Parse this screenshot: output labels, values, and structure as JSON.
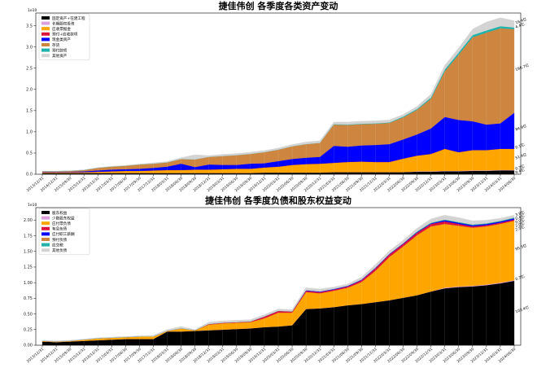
{
  "chart_data": [
    {
      "type": "area",
      "stacked": true,
      "title": "捷佳伟创 各季度各类资产变动",
      "xlabel": "",
      "ylabel": "",
      "y_exponent_label": "1e10",
      "ylim": [
        0,
        3.8
      ],
      "yticks": [
        "0.0",
        "0.5",
        "1.0",
        "1.5",
        "2.0",
        "2.5",
        "3.0",
        "3.5"
      ],
      "ytick_values": [
        0,
        0.5,
        1.0,
        1.5,
        2.0,
        2.5,
        3.0,
        3.5
      ],
      "legend_position": "top-left",
      "grid": false,
      "categories": [
        "2013/12/31",
        "2014/12/31",
        "2015/09/30",
        "2015/12/31",
        "2016/12/31",
        "2017/03/31",
        "2017/06/30",
        "2017/09/30",
        "2017/12/31",
        "2018/03/31",
        "2018/06/30",
        "2018/09/30",
        "2018/12/31",
        "2019/03/31",
        "2019/06/30",
        "2019/09/30",
        "2019/12/31",
        "2020/03/31",
        "2020/06/30",
        "2020/09/30",
        "2020/12/31",
        "2021/03/31",
        "2021/06/30",
        "2021/09/30",
        "2021/12/31",
        "2022/03/31",
        "2022/06/30",
        "2022/09/30",
        "2022/12/31",
        "2023/03/31",
        "2023/06/30",
        "2023/09/30",
        "2023/12/31",
        "2024/03/31",
        "2024/06/30"
      ],
      "tick_labels": [
        "2013/12/31",
        "2014/12/31",
        "2015/09/30",
        "2015/12/31",
        "2016/12/31",
        "2017/03/31",
        "2017/06/30",
        "2017/09/30",
        "2017/12/31",
        "2018/03/31",
        "2018/06/30",
        "2018/09/30",
        "2018/12/31",
        "2019/03/31",
        "2019/06/30",
        "2019/09/30",
        "2019/12/31",
        "2020/03/31",
        "2020/06/30",
        "2020/09/30",
        "2020/12/31",
        "2021/03/31",
        "2021/06/30",
        "2021/09/30",
        "2021/12/31",
        "2022/03/31",
        "2022/06/30",
        "2022/09/30",
        "2022/12/31",
        "2023/03/31",
        "2023/06/30",
        "2023/09/30",
        "2023/12/31",
        "2024/03/31",
        "2024/06/30"
      ],
      "series": [
        {
          "name": "固定资产+在建工程",
          "color": "#000000",
          "values": [
            0.03,
            0.03,
            0.03,
            0.03,
            0.03,
            0.03,
            0.03,
            0.03,
            0.03,
            0.03,
            0.03,
            0.03,
            0.03,
            0.03,
            0.03,
            0.03,
            0.04,
            0.04,
            0.04,
            0.04,
            0.04,
            0.05,
            0.05,
            0.05,
            0.05,
            0.05,
            0.05,
            0.06,
            0.06,
            0.07,
            0.07,
            0.08,
            0.08,
            0.09,
            0.09
          ]
        },
        {
          "name": "长期股权投资",
          "color": "#dda0dd",
          "values": [
            0.0,
            0.0,
            0.0,
            0.0,
            0.0,
            0.0,
            0.0,
            0.0,
            0.0,
            0.0,
            0.0,
            0.0,
            0.0,
            0.0,
            0.0,
            0.0,
            0.0,
            0.0,
            0.0,
            0.0,
            0.0,
            0.0,
            0.0,
            0.0,
            0.0,
            0.0,
            0.0,
            0.01,
            0.01,
            0.01,
            0.01,
            0.01,
            0.01,
            0.01,
            0.01
          ]
        },
        {
          "name": "应收票据金",
          "color": "#ffa500",
          "values": [
            0.02,
            0.02,
            0.02,
            0.02,
            0.03,
            0.04,
            0.05,
            0.05,
            0.06,
            0.07,
            0.07,
            0.08,
            0.08,
            0.09,
            0.1,
            0.1,
            0.12,
            0.14,
            0.18,
            0.2,
            0.21,
            0.22,
            0.24,
            0.25,
            0.24,
            0.24,
            0.32,
            0.37,
            0.41,
            0.52,
            0.44,
            0.48,
            0.48,
            0.5,
            0.5
          ]
        },
        {
          "name": "预付+应收款项",
          "color": "#dc143c",
          "values": [
            0.0,
            0.0,
            0.0,
            0.0,
            0.0,
            0.0,
            0.0,
            0.0,
            0.0,
            0.0,
            0.0,
            0.0,
            0.0,
            0.0,
            0.0,
            0.0,
            0.0,
            0.0,
            0.0,
            0.0,
            0.0,
            0.0,
            0.0,
            0.0,
            0.0,
            0.0,
            0.0,
            0.0,
            0.0,
            0.0,
            0.0,
            0.0,
            0.0,
            0.0,
            0.0
          ]
        },
        {
          "name": "现金类资产",
          "color": "#0000ff",
          "values": [
            0.01,
            0.01,
            0.01,
            0.02,
            0.03,
            0.04,
            0.04,
            0.05,
            0.06,
            0.08,
            0.15,
            0.06,
            0.12,
            0.1,
            0.09,
            0.12,
            0.1,
            0.13,
            0.14,
            0.15,
            0.16,
            0.4,
            0.36,
            0.38,
            0.4,
            0.42,
            0.45,
            0.5,
            0.6,
            0.75,
            0.76,
            0.68,
            0.6,
            0.6,
            0.85
          ]
        },
        {
          "name": "存货",
          "color": "#cd853f",
          "values": [
            0.01,
            0.01,
            0.02,
            0.03,
            0.06,
            0.07,
            0.08,
            0.1,
            0.1,
            0.1,
            0.11,
            0.18,
            0.18,
            0.21,
            0.23,
            0.23,
            0.26,
            0.27,
            0.3,
            0.32,
            0.33,
            0.5,
            0.51,
            0.5,
            0.5,
            0.5,
            0.52,
            0.58,
            0.7,
            1.08,
            1.54,
            1.98,
            2.17,
            2.24,
            1.97
          ]
        },
        {
          "name": "预付款项",
          "color": "#20b2aa",
          "values": [
            0.0,
            0.0,
            0.0,
            0.0,
            0.0,
            0.0,
            0.0,
            0.0,
            0.0,
            0.0,
            0.0,
            0.0,
            0.0,
            0.0,
            0.0,
            0.0,
            0.0,
            0.0,
            0.0,
            0.0,
            0.0,
            0.01,
            0.01,
            0.01,
            0.01,
            0.01,
            0.02,
            0.02,
            0.03,
            0.04,
            0.05,
            0.05,
            0.05,
            0.05,
            0.04
          ]
        },
        {
          "name": "其他资产",
          "color": "#d3d3d3",
          "values": [
            0.0,
            0.0,
            0.0,
            0.0,
            0.01,
            0.01,
            0.01,
            0.01,
            0.02,
            0.02,
            0.03,
            0.11,
            0.03,
            0.04,
            0.04,
            0.04,
            0.04,
            0.04,
            0.04,
            0.05,
            0.05,
            0.05,
            0.06,
            0.06,
            0.06,
            0.06,
            0.05,
            0.06,
            0.08,
            0.1,
            0.11,
            0.14,
            0.2,
            0.2,
            0.16
          ]
        }
      ],
      "annotations": [
        {
          "text": "9.4亿",
          "series_index": 0
        },
        {
          "text": "0.7亿",
          "series_index": 1
        },
        {
          "text": "51.4亿",
          "series_index": 2
        },
        {
          "text": "0.1亿",
          "series_index": 3
        },
        {
          "text": "84.9亿",
          "series_index": 4
        },
        {
          "text": "196.7亿",
          "series_index": 5
        },
        {
          "text": "4.4亿",
          "series_index": 6
        },
        {
          "text": "16.4亿",
          "series_index": 7
        }
      ]
    },
    {
      "type": "area",
      "stacked": true,
      "title": "捷佳伟创 各季度负债和股东权益变动",
      "xlabel": "",
      "ylabel": "",
      "y_exponent_label": "1e10",
      "ylim": [
        0,
        2.2
      ],
      "yticks": [
        "0.00",
        "0.25",
        "0.50",
        "0.75",
        "1.00",
        "1.25",
        "1.50",
        "1.75",
        "2.00"
      ],
      "ytick_values": [
        0,
        0.25,
        0.5,
        0.75,
        1.0,
        1.25,
        1.5,
        1.75,
        2.0
      ],
      "legend_position": "top-left",
      "grid": false,
      "categories": [
        "2013/12/31",
        "2014/12/31",
        "2015/09/30",
        "2015/12/31",
        "2016/12/31",
        "2017/03/31",
        "2017/06/30",
        "2017/09/30",
        "2017/12/31",
        "2018/03/31",
        "2018/06/30",
        "2018/09/30",
        "2018/12/31",
        "2019/03/31",
        "2019/06/30",
        "2019/09/30",
        "2019/12/31",
        "2020/03/31",
        "2020/06/30",
        "2020/09/30",
        "2020/12/31",
        "2021/03/31",
        "2021/06/30",
        "2021/09/30",
        "2021/12/31",
        "2022/03/31",
        "2022/06/30",
        "2022/09/30",
        "2022/12/31",
        "2023/03/31",
        "2023/06/30",
        "2023/09/30",
        "2023/12/31",
        "2024/03/31",
        "2024/06/30"
      ],
      "tick_labels": [
        "2013/12/31",
        "2014/12/31",
        "2015/09/30",
        "2015/12/31",
        "2016/12/31",
        "2017/03/31",
        "2017/06/30",
        "2017/09/30",
        "2017/12/31",
        "2018/03/31",
        "2018/06/30",
        "2018/09/30",
        "2018/12/31",
        "2019/03/31",
        "2019/06/30",
        "2019/09/30",
        "2019/12/31",
        "2020/03/31",
        "2020/06/30",
        "2020/09/30",
        "2020/12/31",
        "2021/03/31",
        "2021/06/30",
        "2021/09/30",
        "2021/12/31",
        "2022/03/31",
        "2022/06/30",
        "2022/09/30",
        "2022/12/31",
        "2023/03/31",
        "2023/06/30",
        "2023/09/30",
        "2023/12/31",
        "2024/03/31",
        "2024/06/30"
      ],
      "series": [
        {
          "name": "股东权益",
          "color": "#000000",
          "values": [
            0.06,
            0.05,
            0.06,
            0.07,
            0.08,
            0.09,
            0.1,
            0.1,
            0.1,
            0.22,
            0.22,
            0.23,
            0.24,
            0.25,
            0.26,
            0.27,
            0.29,
            0.3,
            0.32,
            0.58,
            0.59,
            0.61,
            0.64,
            0.66,
            0.69,
            0.72,
            0.76,
            0.8,
            0.86,
            0.91,
            0.93,
            0.94,
            0.96,
            0.99,
            1.03
          ]
        },
        {
          "name": "少数股东权益",
          "color": "#dda0dd",
          "values": [
            0.0,
            0.0,
            0.0,
            0.0,
            0.0,
            0.0,
            0.0,
            0.0,
            0.0,
            0.0,
            0.0,
            0.0,
            0.0,
            0.0,
            0.0,
            0.0,
            0.0,
            0.0,
            0.0,
            0.0,
            0.0,
            0.0,
            0.0,
            0.0,
            0.0,
            0.0,
            0.0,
            0.0,
            0.0,
            0.01,
            0.01,
            0.01,
            0.01,
            0.01,
            0.01
          ]
        },
        {
          "name": "应付票负债",
          "color": "#ffa500",
          "values": [
            0.01,
            0.01,
            0.01,
            0.02,
            0.03,
            0.03,
            0.03,
            0.04,
            0.04,
            0.01,
            0.05,
            0.01,
            0.09,
            0.1,
            0.1,
            0.1,
            0.14,
            0.22,
            0.2,
            0.27,
            0.24,
            0.26,
            0.28,
            0.35,
            0.5,
            0.69,
            0.82,
            0.96,
            1.04,
            1.02,
            0.97,
            0.93,
            0.93,
            0.94,
            0.95
          ]
        },
        {
          "name": "有息负债",
          "color": "#dc143c",
          "values": [
            0.0,
            0.0,
            0.0,
            0.0,
            0.0,
            0.0,
            0.0,
            0.0,
            0.0,
            0.0,
            0.0,
            0.0,
            0.01,
            0.01,
            0.01,
            0.01,
            0.03,
            0.03,
            0.02,
            0.02,
            0.02,
            0.02,
            0.02,
            0.03,
            0.04,
            0.04,
            0.04,
            0.04,
            0.04,
            0.04,
            0.03,
            0.02,
            0.02,
            0.02,
            0.02
          ]
        },
        {
          "name": "应付职工薪酬",
          "color": "#0000ff",
          "values": [
            0.0,
            0.0,
            0.0,
            0.0,
            0.0,
            0.0,
            0.0,
            0.0,
            0.0,
            0.0,
            0.0,
            0.0,
            0.0,
            0.0,
            0.0,
            0.0,
            0.0,
            0.0,
            0.0,
            0.01,
            0.01,
            0.01,
            0.01,
            0.01,
            0.01,
            0.01,
            0.01,
            0.01,
            0.01,
            0.02,
            0.02,
            0.02,
            0.02,
            0.02,
            0.02
          ]
        },
        {
          "name": "预付负债",
          "color": "#cd853f",
          "values": [
            0.0,
            0.0,
            0.0,
            0.0,
            0.0,
            0.0,
            0.0,
            0.0,
            0.0,
            0.0,
            0.0,
            0.0,
            0.0,
            0.0,
            0.0,
            0.0,
            0.0,
            0.0,
            0.0,
            0.0,
            0.0,
            0.0,
            0.0,
            0.0,
            0.0,
            0.0,
            0.0,
            0.0,
            0.0,
            0.0,
            0.0,
            0.0,
            0.0,
            0.0,
            0.0
          ]
        },
        {
          "name": "应交税",
          "color": "#20b2aa",
          "values": [
            0.0,
            0.0,
            0.0,
            0.0,
            0.0,
            0.0,
            0.0,
            0.0,
            0.0,
            0.0,
            0.0,
            0.0,
            0.0,
            0.0,
            0.0,
            0.0,
            0.0,
            0.0,
            0.0,
            0.0,
            0.0,
            0.0,
            0.0,
            0.0,
            0.0,
            0.0,
            0.0,
            0.01,
            0.01,
            0.01,
            0.01,
            0.01,
            0.01,
            0.01,
            0.01
          ]
        },
        {
          "name": "其他负债",
          "color": "#d3d3d3",
          "values": [
            0.01,
            0.01,
            0.01,
            0.01,
            0.01,
            0.01,
            0.01,
            0.01,
            0.02,
            0.02,
            0.03,
            0.01,
            0.03,
            0.03,
            0.03,
            0.03,
            0.03,
            0.03,
            0.03,
            0.04,
            0.04,
            0.03,
            0.03,
            0.04,
            0.05,
            0.05,
            0.05,
            0.05,
            0.06,
            0.07,
            0.07,
            0.06,
            0.05,
            0.04,
            0.04
          ]
        }
      ],
      "annotations": [
        {
          "text": "103.4亿",
          "series_index": 0
        },
        {
          "text": "0.7亿",
          "series_index": 1
        },
        {
          "text": "95.5亿",
          "series_index": 2
        },
        {
          "text": "2.5亿",
          "series_index": 3
        },
        {
          "text": "2.0亿",
          "series_index": 4
        },
        {
          "text": "0.0亿",
          "series_index": 5
        },
        {
          "text": "0.4亿",
          "series_index": 6
        },
        {
          "text": "3.8亿",
          "series_index": 7
        }
      ]
    }
  ]
}
